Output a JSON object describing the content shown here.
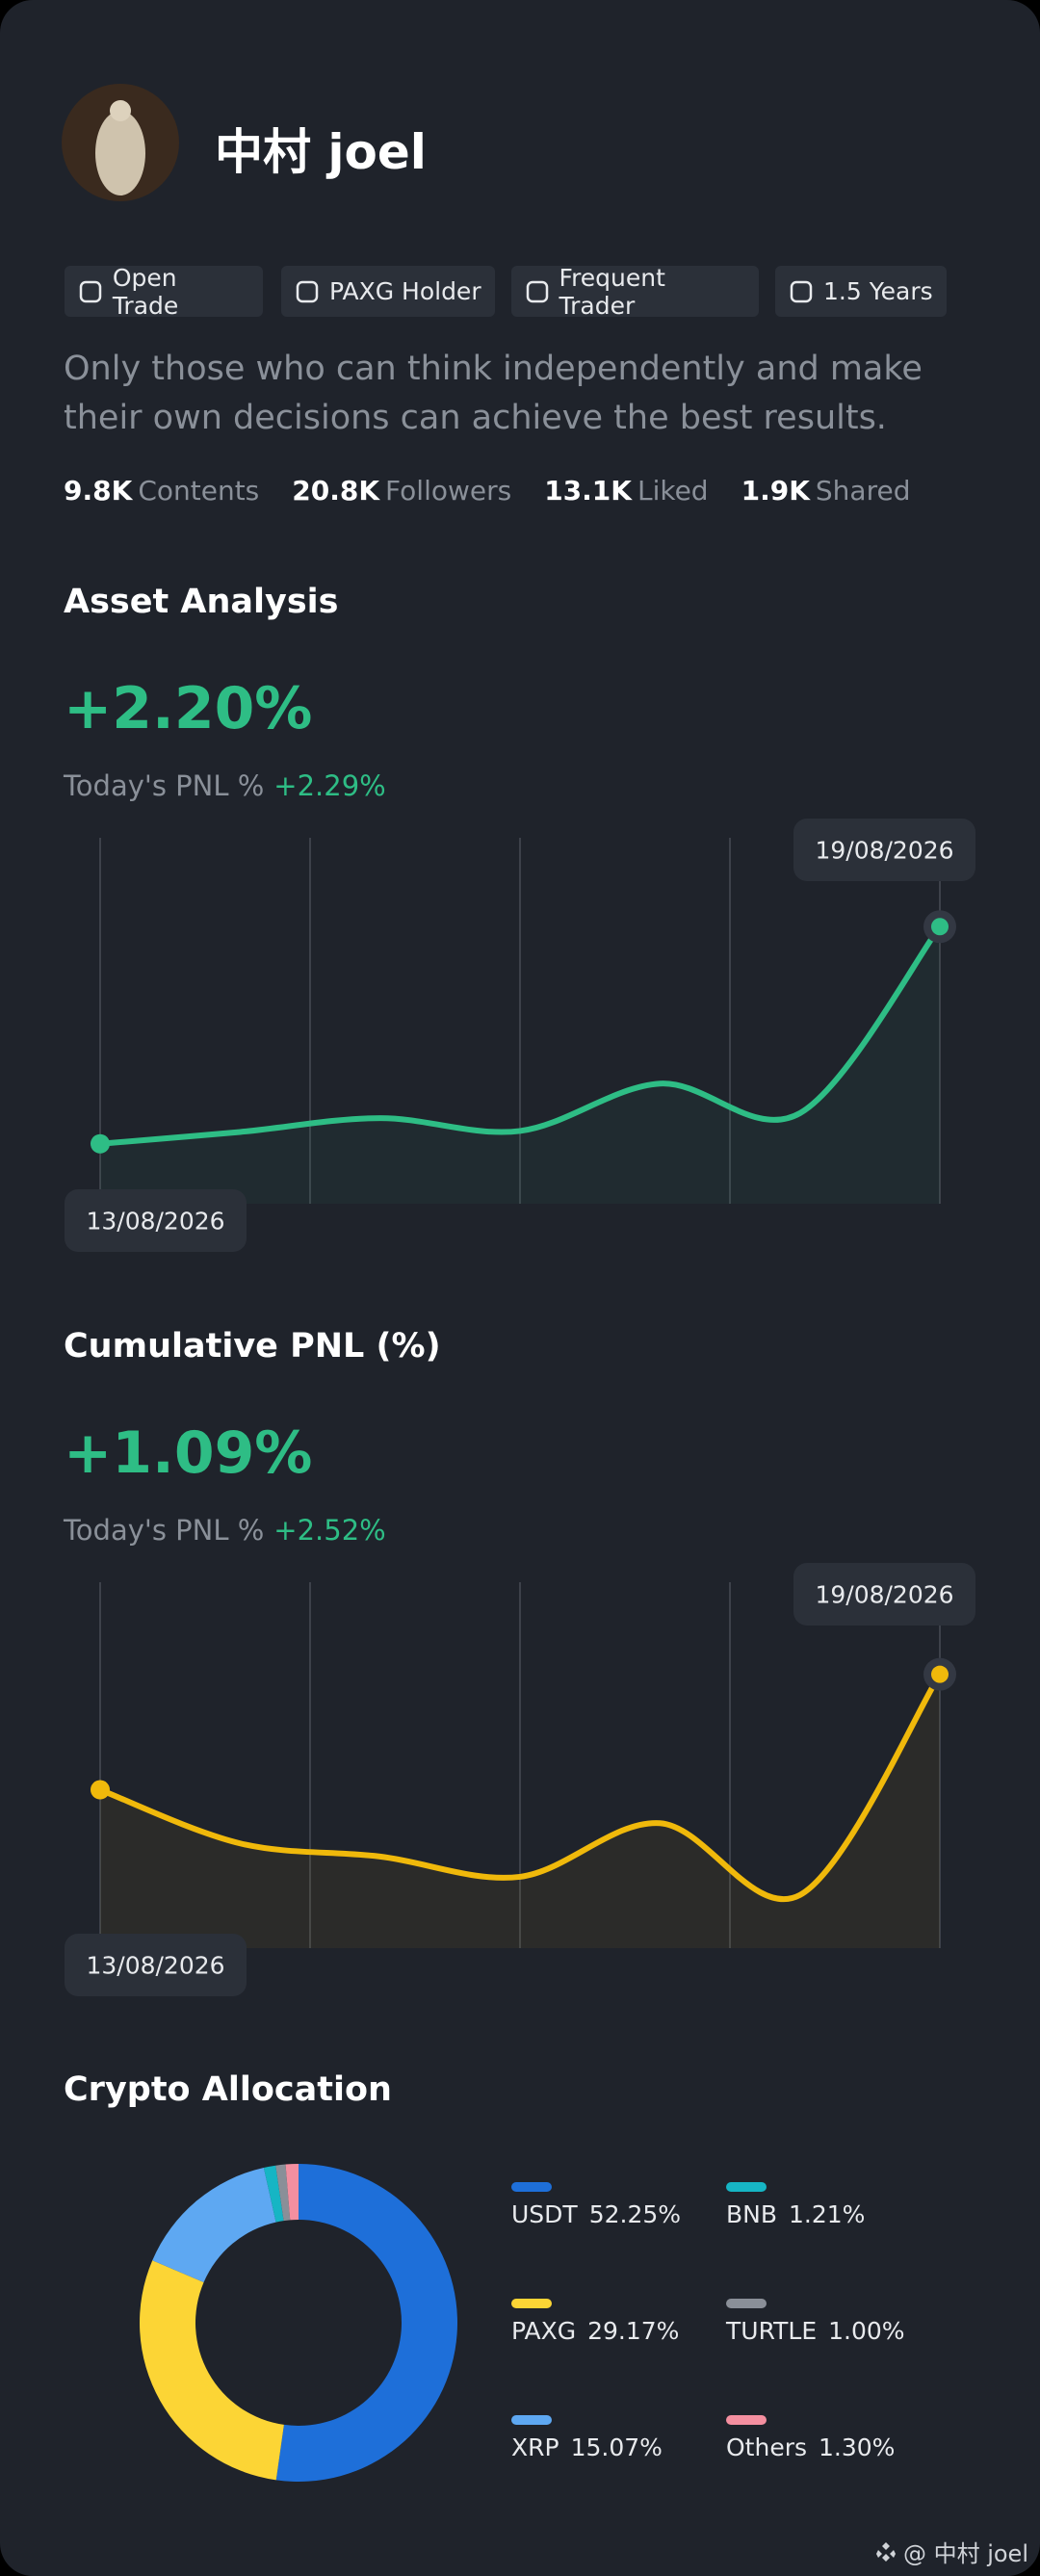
{
  "profile": {
    "name": "中村 joel",
    "badges": [
      "Open Trade",
      "PAXG Holder",
      "Frequent Trader",
      "1.5 Years"
    ],
    "bio": "Only those who can think independently and make their own decisions can achieve the best results.",
    "stats": [
      {
        "value": "9.8K",
        "label": "Contents"
      },
      {
        "value": "20.8K",
        "label": "Followers"
      },
      {
        "value": "13.1K",
        "label": "Liked"
      },
      {
        "value": "1.9K",
        "label": "Shared"
      }
    ]
  },
  "chart_data": [
    {
      "type": "line",
      "title": "Asset Analysis",
      "headline": "+2.20%",
      "pnl_label": "Today's PNL %",
      "pnl_value": "+2.29%",
      "categories": [
        "13/08/2026",
        null,
        null,
        null,
        null,
        null,
        "19/08/2026"
      ],
      "series": [
        {
          "color": "#2ebd85",
          "values": [
            0,
            0.12,
            0.26,
            0.13,
            0.61,
            0.31,
            2.2
          ]
        }
      ],
      "ylim": [
        -0.9,
        3.1
      ]
    },
    {
      "type": "line",
      "title": "Cumulative PNL (%)",
      "headline": "+1.09%",
      "pnl_label": "Today's PNL %",
      "pnl_value": "+2.52%",
      "categories": [
        "13/08/2026",
        null,
        null,
        null,
        null,
        null,
        "19/08/2026"
      ],
      "series": [
        {
          "color": "#f0b90b",
          "values": [
            -0.05,
            -0.58,
            -0.71,
            -0.91,
            -0.38,
            -1.09,
            1.09
          ]
        }
      ],
      "ylim": [
        -1.9,
        2.0
      ]
    },
    {
      "type": "pie",
      "title": "Crypto Allocation",
      "categories": [
        "USDT",
        "PAXG",
        "XRP",
        "BNB",
        "TURTLE",
        "Others"
      ],
      "values": [
        52.25,
        29.17,
        15.07,
        1.21,
        1.0,
        1.3
      ],
      "value_labels": [
        "52.25%",
        "29.17%",
        "15.07%",
        "1.21%",
        "1.00%",
        "1.30%"
      ],
      "colors": [
        "#1e6fd9",
        "#fcd535",
        "#5ea8f2",
        "#16b5c4",
        "#8a8f98",
        "#f48fa0"
      ]
    }
  ],
  "watermark": "@ 中村 joel"
}
